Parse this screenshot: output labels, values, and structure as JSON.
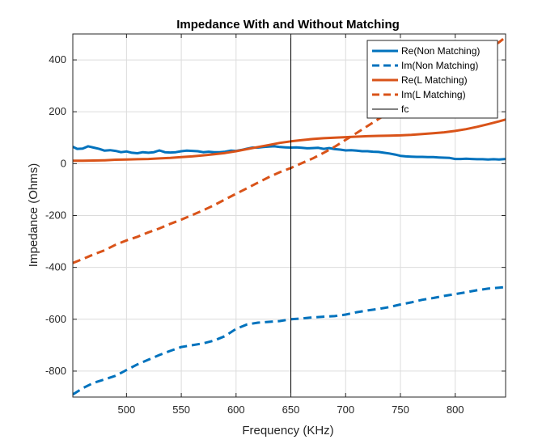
{
  "chart_data": {
    "type": "line",
    "title": "Impedance With and Without Matching",
    "xlabel": "Frequency (KHz)",
    "ylabel": "Impedance (Ohms)",
    "xlim": [
      451,
      846
    ],
    "ylim": [
      -900,
      500
    ],
    "xticks": [
      500,
      550,
      600,
      650,
      700,
      750,
      800
    ],
    "yticks": [
      -800,
      -600,
      -400,
      -200,
      0,
      200,
      400
    ],
    "grid": true,
    "legend_position": "top-right",
    "vline": {
      "x": 650,
      "name": "fc",
      "color": "#000000"
    },
    "series": [
      {
        "name": "Re(Non Matching)",
        "color": "#0072BD",
        "style": "solid",
        "x": [
          451,
          455,
          460,
          465,
          470,
          475,
          480,
          485,
          490,
          495,
          500,
          505,
          510,
          515,
          520,
          525,
          530,
          535,
          540,
          545,
          550,
          555,
          560,
          565,
          570,
          575,
          580,
          585,
          590,
          595,
          600,
          605,
          610,
          615,
          620,
          625,
          630,
          635,
          640,
          645,
          650,
          655,
          660,
          665,
          670,
          675,
          680,
          685,
          690,
          695,
          700,
          705,
          710,
          715,
          720,
          725,
          730,
          735,
          740,
          745,
          750,
          755,
          760,
          765,
          770,
          775,
          780,
          785,
          790,
          795,
          800,
          805,
          810,
          815,
          820,
          825,
          830,
          835,
          840,
          846
        ],
        "y": [
          65,
          57,
          58,
          67,
          62,
          57,
          50,
          52,
          49,
          44,
          47,
          42,
          40,
          44,
          42,
          44,
          51,
          44,
          43,
          44,
          48,
          50,
          49,
          48,
          44,
          46,
          44,
          44,
          46,
          50,
          49,
          53,
          58,
          62,
          62,
          64,
          66,
          67,
          64,
          63,
          62,
          63,
          61,
          59,
          60,
          61,
          57,
          60,
          56,
          54,
          51,
          52,
          50,
          48,
          48,
          46,
          45,
          42,
          39,
          35,
          30,
          28,
          27,
          26,
          26,
          25,
          25,
          24,
          23,
          22,
          18,
          18,
          19,
          18,
          17,
          17,
          16,
          17,
          16,
          18
        ]
      },
      {
        "name": "Im(Non Matching)",
        "color": "#0072BD",
        "style": "dashed",
        "x": [
          451,
          460,
          470,
          480,
          490,
          500,
          510,
          520,
          530,
          540,
          550,
          560,
          570,
          580,
          590,
          600,
          610,
          620,
          630,
          640,
          650,
          660,
          670,
          680,
          690,
          700,
          710,
          720,
          730,
          740,
          750,
          760,
          770,
          780,
          790,
          800,
          810,
          820,
          830,
          840,
          846
        ],
        "y": [
          -890,
          -866,
          -845,
          -832,
          -818,
          -796,
          -774,
          -756,
          -738,
          -722,
          -707,
          -700,
          -693,
          -682,
          -665,
          -637,
          -620,
          -613,
          -610,
          -607,
          -600,
          -597,
          -593,
          -590,
          -588,
          -582,
          -573,
          -566,
          -560,
          -553,
          -543,
          -535,
          -525,
          -518,
          -510,
          -503,
          -496,
          -488,
          -482,
          -478,
          -476
        ]
      },
      {
        "name": "Re(L Matching)",
        "color": "#D95319",
        "style": "solid",
        "x": [
          451,
          460,
          470,
          480,
          490,
          500,
          510,
          520,
          530,
          540,
          550,
          560,
          570,
          580,
          590,
          600,
          610,
          620,
          630,
          640,
          650,
          660,
          670,
          680,
          690,
          700,
          710,
          720,
          730,
          740,
          750,
          760,
          770,
          780,
          790,
          800,
          810,
          820,
          830,
          840,
          846
        ],
        "y": [
          11,
          11,
          12,
          13,
          15,
          16,
          17,
          18,
          20,
          22,
          25,
          28,
          32,
          36,
          41,
          48,
          56,
          64,
          72,
          80,
          86,
          91,
          95,
          98,
          100,
          102,
          104,
          106,
          107,
          108,
          109,
          111,
          114,
          117,
          121,
          126,
          133,
          142,
          152,
          163,
          170
        ]
      },
      {
        "name": "Im(L Matching)",
        "color": "#D95319",
        "style": "dashed",
        "x": [
          451,
          460,
          470,
          480,
          490,
          500,
          510,
          520,
          530,
          540,
          550,
          560,
          570,
          580,
          590,
          600,
          610,
          620,
          630,
          640,
          650,
          660,
          670,
          680,
          690,
          700,
          710,
          720,
          730,
          740,
          750,
          760,
          770,
          780,
          790,
          800,
          810,
          820,
          830,
          840,
          846
        ],
        "y": [
          -383,
          -368,
          -350,
          -334,
          -313,
          -296,
          -282,
          -265,
          -250,
          -232,
          -216,
          -198,
          -180,
          -160,
          -138,
          -116,
          -95,
          -73,
          -52,
          -33,
          -17,
          2,
          20,
          42,
          65,
          92,
          118,
          145,
          172,
          198,
          225,
          251,
          278,
          305,
          332,
          358,
          385,
          412,
          440,
          468,
          488
        ]
      }
    ]
  }
}
